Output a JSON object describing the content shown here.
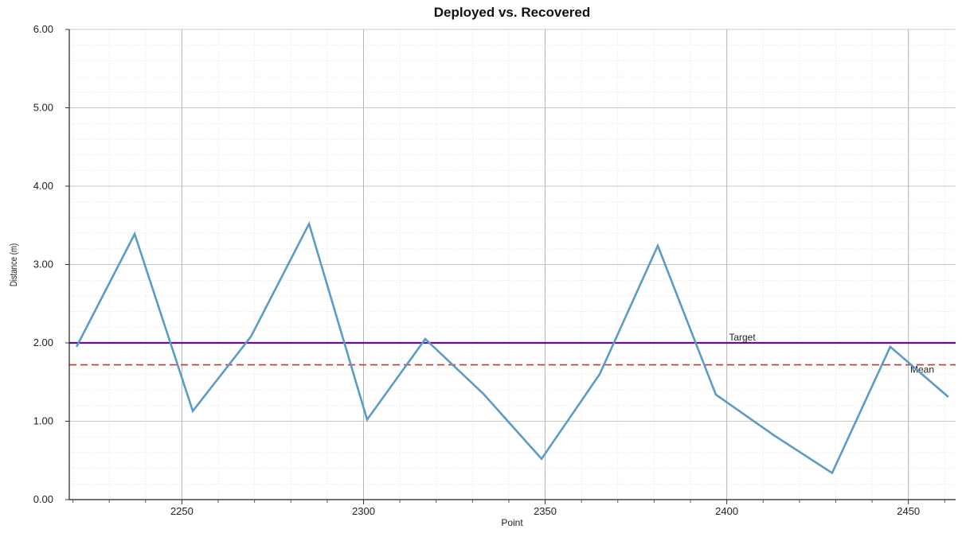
{
  "chart_data": {
    "type": "line",
    "title": "Deployed vs. Recovered",
    "xlabel": "Point",
    "ylabel": "Distance (m)",
    "xlim": [
      2219,
      2463
    ],
    "ylim": [
      0,
      6
    ],
    "x_ticks": [
      2250,
      2300,
      2350,
      2400,
      2450
    ],
    "x_tick_labels": [
      "2250",
      "2300",
      "2350",
      "2400",
      "2450"
    ],
    "x_minor_step": 10,
    "y_ticks": [
      0,
      1,
      2,
      3,
      4,
      5,
      6
    ],
    "y_tick_labels": [
      "0.00",
      "1.00",
      "2.00",
      "3.00",
      "4.00",
      "5.00",
      "6.00"
    ],
    "y_minor_step": 0.2,
    "grid": true,
    "series": [
      {
        "color": "#5b9bc8",
        "x": [
          2221,
          2237,
          2253,
          2269,
          2285,
          2301,
          2317,
          2333,
          2349,
          2365,
          2381,
          2397,
          2413,
          2429,
          2445,
          2461
        ],
        "y": [
          1.95,
          3.39,
          1.13,
          2.08,
          3.52,
          1.02,
          2.05,
          1.35,
          0.52,
          1.6,
          3.24,
          1.34,
          0.82,
          0.34,
          1.95,
          1.31
        ]
      }
    ],
    "reference_lines": [
      {
        "label": "Target",
        "y": 2.0,
        "color": "#6a0d8a",
        "style": "solid"
      },
      {
        "label": "Mean",
        "y": 1.72,
        "color": "#c0392b",
        "style": "dashed"
      }
    ]
  }
}
